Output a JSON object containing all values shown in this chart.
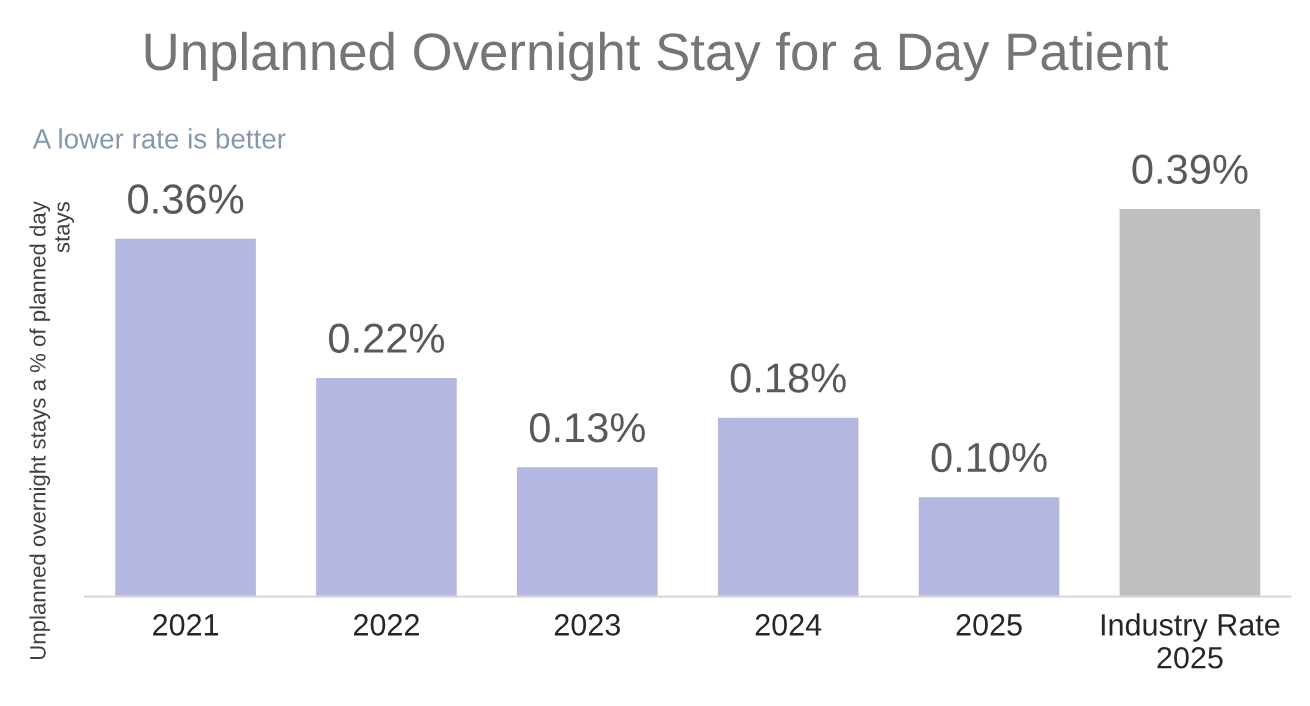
{
  "chart_data": {
    "type": "bar",
    "title": "Unplanned Overnight Stay for a Day Patient",
    "ylabel": "Unplanned overnight stays a % of planned day\nstays",
    "annotations": [
      "A lower rate is better"
    ],
    "categories": [
      "2021",
      "2022",
      "2023",
      "2024",
      "2025",
      "Industry Rate\n2025"
    ],
    "values": [
      0.36,
      0.22,
      0.13,
      0.18,
      0.1,
      0.39
    ],
    "colors": [
      "#b4b7e0",
      "#b4b7e0",
      "#b4b7e0",
      "#b4b7e0",
      "#b4b7e0",
      "#bfbfbf"
    ],
    "value_labels": [
      "0.36%",
      "0.22%",
      "0.13%",
      "0.18%",
      "0.10%",
      "0.39%"
    ],
    "grid": false,
    "legend": false
  }
}
